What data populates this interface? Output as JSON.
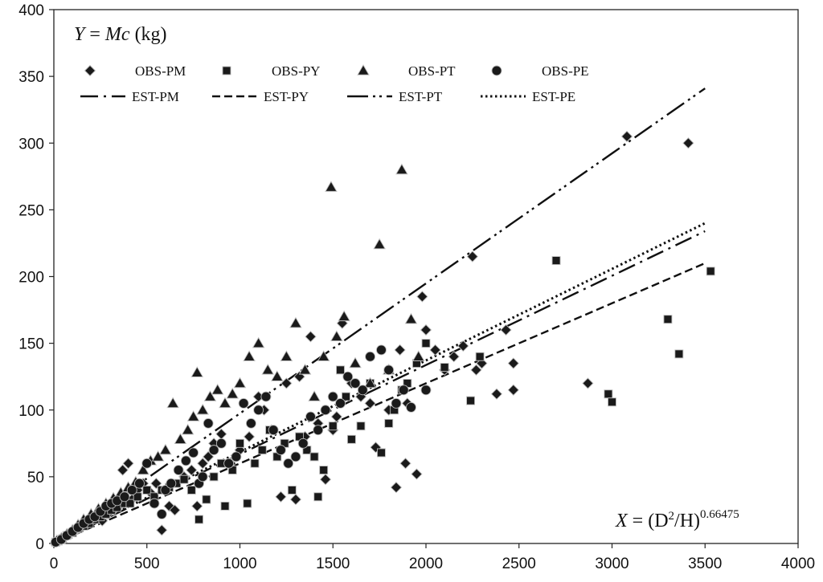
{
  "chart_data": {
    "type": "scatter",
    "annotations": {
      "y_formula": {
        "var": "Y",
        "eq": " = ",
        "expr": "Mc",
        "unit": " (kg)"
      },
      "x_formula": {
        "var": "X",
        "eq": " = (D",
        "sq": "2",
        "mid": "/H)",
        "exp": "0.66475"
      }
    },
    "xlim": [
      0,
      4000
    ],
    "ylim": [
      0,
      400
    ],
    "x_ticks": [
      "0",
      "500",
      "1000",
      "1500",
      "2000",
      "2500",
      "3000",
      "3500",
      "4000"
    ],
    "y_ticks": [
      "0",
      "50",
      "100",
      "150",
      "200",
      "250",
      "300",
      "350",
      "400"
    ],
    "grid": false,
    "legend": {
      "placement": "top-left",
      "markers": [
        {
          "key": "PM",
          "label": "OBS-PM",
          "marker": "diamond"
        },
        {
          "key": "PY",
          "label": "OBS-PY",
          "marker": "square"
        },
        {
          "key": "PT",
          "label": "OBS-PT",
          "marker": "triangle"
        },
        {
          "key": "PE",
          "label": "OBS-PE",
          "marker": "circle"
        }
      ],
      "lines": [
        {
          "key": "PM",
          "label": "EST-PM",
          "style": "dashdot"
        },
        {
          "key": "PY",
          "label": "EST-PY",
          "style": "dashed"
        },
        {
          "key": "PT",
          "label": "EST-PT",
          "style": "longdashdotdot"
        },
        {
          "key": "PE",
          "label": "EST-PE",
          "style": "dotted"
        }
      ]
    },
    "estimated_lines": [
      {
        "name": "EST-PM",
        "x": [
          0,
          3500
        ],
        "y": [
          0,
          234
        ]
      },
      {
        "name": "EST-PY",
        "x": [
          0,
          3500
        ],
        "y": [
          0,
          210
        ]
      },
      {
        "name": "EST-PT",
        "x": [
          0,
          3500
        ],
        "y": [
          0,
          341
        ]
      },
      {
        "name": "EST-PE",
        "x": [
          0,
          3500
        ],
        "y": [
          0,
          240
        ]
      }
    ],
    "series": [
      {
        "name": "OBS-PM",
        "points": [
          [
            10,
            1
          ],
          [
            30,
            3
          ],
          [
            60,
            5
          ],
          [
            90,
            8
          ],
          [
            120,
            10
          ],
          [
            150,
            12
          ],
          [
            180,
            15
          ],
          [
            200,
            18
          ],
          [
            230,
            20
          ],
          [
            260,
            17
          ],
          [
            290,
            22
          ],
          [
            320,
            25
          ],
          [
            350,
            28
          ],
          [
            370,
            55
          ],
          [
            400,
            60
          ],
          [
            420,
            33
          ],
          [
            450,
            40
          ],
          [
            480,
            45
          ],
          [
            520,
            38
          ],
          [
            550,
            45
          ],
          [
            580,
            10
          ],
          [
            620,
            28
          ],
          [
            650,
            25
          ],
          [
            700,
            50
          ],
          [
            740,
            55
          ],
          [
            770,
            28
          ],
          [
            800,
            60
          ],
          [
            830,
            65
          ],
          [
            860,
            75
          ],
          [
            900,
            82
          ],
          [
            950,
            60
          ],
          [
            1000,
            70
          ],
          [
            1050,
            80
          ],
          [
            1100,
            110
          ],
          [
            1130,
            100
          ],
          [
            1170,
            85
          ],
          [
            1220,
            35
          ],
          [
            1250,
            120
          ],
          [
            1300,
            33
          ],
          [
            1320,
            125
          ],
          [
            1350,
            80
          ],
          [
            1380,
            155
          ],
          [
            1420,
            90
          ],
          [
            1460,
            48
          ],
          [
            1500,
            85
          ],
          [
            1520,
            95
          ],
          [
            1550,
            165
          ],
          [
            1600,
            120
          ],
          [
            1650,
            110
          ],
          [
            1700,
            105
          ],
          [
            1730,
            72
          ],
          [
            1800,
            100
          ],
          [
            1840,
            42
          ],
          [
            1860,
            145
          ],
          [
            1890,
            60
          ],
          [
            1900,
            105
          ],
          [
            1950,
            52
          ],
          [
            1980,
            185
          ],
          [
            2000,
            160
          ],
          [
            2050,
            145
          ],
          [
            2100,
            130
          ],
          [
            2150,
            140
          ],
          [
            2200,
            148
          ],
          [
            2250,
            215
          ],
          [
            2270,
            130
          ],
          [
            2300,
            135
          ],
          [
            2380,
            112
          ],
          [
            2430,
            160
          ],
          [
            2470,
            115
          ],
          [
            2470,
            135
          ],
          [
            2870,
            120
          ],
          [
            3080,
            305
          ],
          [
            3410,
            300
          ]
        ]
      },
      {
        "name": "OBS-PY",
        "points": [
          [
            10,
            1
          ],
          [
            40,
            3
          ],
          [
            70,
            6
          ],
          [
            100,
            8
          ],
          [
            130,
            11
          ],
          [
            160,
            13
          ],
          [
            190,
            15
          ],
          [
            220,
            18
          ],
          [
            250,
            20
          ],
          [
            280,
            22
          ],
          [
            310,
            25
          ],
          [
            340,
            27
          ],
          [
            380,
            30
          ],
          [
            410,
            30
          ],
          [
            450,
            35
          ],
          [
            500,
            40
          ],
          [
            540,
            35
          ],
          [
            580,
            40
          ],
          [
            620,
            42
          ],
          [
            660,
            45
          ],
          [
            700,
            48
          ],
          [
            740,
            40
          ],
          [
            780,
            18
          ],
          [
            820,
            33
          ],
          [
            860,
            50
          ],
          [
            900,
            60
          ],
          [
            920,
            28
          ],
          [
            960,
            55
          ],
          [
            1000,
            75
          ],
          [
            1040,
            30
          ],
          [
            1080,
            60
          ],
          [
            1120,
            70
          ],
          [
            1160,
            85
          ],
          [
            1200,
            65
          ],
          [
            1240,
            75
          ],
          [
            1280,
            40
          ],
          [
            1320,
            80
          ],
          [
            1360,
            70
          ],
          [
            1400,
            65
          ],
          [
            1420,
            35
          ],
          [
            1450,
            55
          ],
          [
            1500,
            88
          ],
          [
            1540,
            130
          ],
          [
            1570,
            110
          ],
          [
            1600,
            78
          ],
          [
            1650,
            88
          ],
          [
            1700,
            120
          ],
          [
            1760,
            68
          ],
          [
            1800,
            90
          ],
          [
            1830,
            100
          ],
          [
            1870,
            115
          ],
          [
            1900,
            120
          ],
          [
            1950,
            135
          ],
          [
            2000,
            150
          ],
          [
            2100,
            132
          ],
          [
            2240,
            107
          ],
          [
            2290,
            140
          ],
          [
            2700,
            212
          ],
          [
            2980,
            112
          ],
          [
            3000,
            106
          ],
          [
            3300,
            168
          ],
          [
            3360,
            142
          ],
          [
            3530,
            204
          ]
        ]
      },
      {
        "name": "OBS-PT",
        "points": [
          [
            15,
            2
          ],
          [
            40,
            4
          ],
          [
            70,
            7
          ],
          [
            100,
            10
          ],
          [
            130,
            14
          ],
          [
            160,
            18
          ],
          [
            200,
            22
          ],
          [
            240,
            26
          ],
          [
            280,
            30
          ],
          [
            320,
            34
          ],
          [
            360,
            38
          ],
          [
            400,
            42
          ],
          [
            440,
            46
          ],
          [
            480,
            55
          ],
          [
            520,
            62
          ],
          [
            560,
            65
          ],
          [
            600,
            70
          ],
          [
            640,
            105
          ],
          [
            680,
            78
          ],
          [
            720,
            85
          ],
          [
            750,
            95
          ],
          [
            770,
            128
          ],
          [
            800,
            100
          ],
          [
            840,
            110
          ],
          [
            880,
            115
          ],
          [
            920,
            105
          ],
          [
            960,
            112
          ],
          [
            1000,
            120
          ],
          [
            1050,
            140
          ],
          [
            1100,
            150
          ],
          [
            1150,
            130
          ],
          [
            1200,
            125
          ],
          [
            1250,
            140
          ],
          [
            1300,
            165
          ],
          [
            1350,
            130
          ],
          [
            1400,
            110
          ],
          [
            1450,
            140
          ],
          [
            1490,
            267
          ],
          [
            1520,
            155
          ],
          [
            1560,
            170
          ],
          [
            1620,
            135
          ],
          [
            1700,
            120
          ],
          [
            1750,
            224
          ],
          [
            1800,
            130
          ],
          [
            1870,
            280
          ],
          [
            1920,
            168
          ],
          [
            1960,
            140
          ]
        ]
      },
      {
        "name": "OBS-PE",
        "points": [
          [
            10,
            1
          ],
          [
            40,
            3
          ],
          [
            70,
            6
          ],
          [
            100,
            9
          ],
          [
            130,
            12
          ],
          [
            160,
            15
          ],
          [
            190,
            18
          ],
          [
            220,
            20
          ],
          [
            250,
            24
          ],
          [
            280,
            28
          ],
          [
            310,
            30
          ],
          [
            340,
            32
          ],
          [
            380,
            35
          ],
          [
            420,
            40
          ],
          [
            460,
            45
          ],
          [
            500,
            60
          ],
          [
            540,
            30
          ],
          [
            580,
            22
          ],
          [
            600,
            40
          ],
          [
            630,
            45
          ],
          [
            670,
            55
          ],
          [
            710,
            62
          ],
          [
            750,
            68
          ],
          [
            780,
            45
          ],
          [
            800,
            50
          ],
          [
            830,
            90
          ],
          [
            860,
            70
          ],
          [
            900,
            75
          ],
          [
            940,
            60
          ],
          [
            980,
            65
          ],
          [
            1020,
            105
          ],
          [
            1060,
            90
          ],
          [
            1100,
            100
          ],
          [
            1140,
            110
          ],
          [
            1180,
            85
          ],
          [
            1220,
            70
          ],
          [
            1260,
            60
          ],
          [
            1300,
            65
          ],
          [
            1340,
            75
          ],
          [
            1380,
            95
          ],
          [
            1420,
            85
          ],
          [
            1460,
            100
          ],
          [
            1500,
            110
          ],
          [
            1540,
            105
          ],
          [
            1580,
            125
          ],
          [
            1620,
            120
          ],
          [
            1660,
            115
          ],
          [
            1700,
            140
          ],
          [
            1760,
            145
          ],
          [
            1800,
            130
          ],
          [
            1840,
            105
          ],
          [
            1880,
            115
          ],
          [
            1920,
            102
          ],
          [
            2000,
            115
          ]
        ]
      }
    ]
  }
}
